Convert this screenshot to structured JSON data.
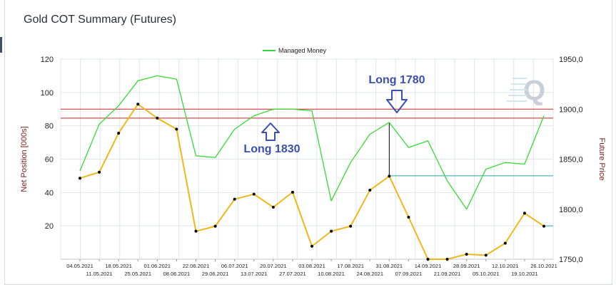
{
  "window": {
    "title": "Gold COT Summary (Futures)"
  },
  "chart_data": {
    "type": "line",
    "title": "Gold COT Summary (Futures)",
    "ylabel": "Net Position [000s]",
    "y2label": "Future Price",
    "ylim": [
      0,
      120
    ],
    "y2lim": [
      1750,
      1950
    ],
    "yticks": [
      "120",
      "100",
      "80",
      "60",
      "40",
      "20"
    ],
    "y2ticks": [
      "1950,0",
      "1900,0",
      "1850,0",
      "1800,0",
      "1750,0"
    ],
    "grid": true,
    "legend": "top-center",
    "categories": [
      "04.05.2021",
      "11.05.2021",
      "18.05.2021",
      "25.05.2021",
      "01.06.2021",
      "08.06.2021",
      "22.06.2021",
      "29.06.2021",
      "06.07.2021",
      "13.07.2021",
      "20.07.2021",
      "27.07.2021",
      "03.08.2021",
      "10.08.2021",
      "17.08.2021",
      "24.08.2021",
      "31.08.2021",
      "07.09.2021",
      "14.09.2021",
      "21.09.2021",
      "28.09.2021",
      "05.10.2021",
      "12.10.2021",
      "19.10.2021",
      "26.10.2021"
    ],
    "series": [
      {
        "name": "Managed Money",
        "color": "#33dd33",
        "axis": "left",
        "values": [
          53,
          81,
          92,
          107,
          110,
          108,
          62,
          61,
          78,
          86,
          90,
          90,
          89,
          35,
          58,
          75,
          82,
          67,
          71,
          47,
          30,
          54,
          58,
          57,
          86
        ]
      },
      {
        "color": "#f0b818",
        "axis": "right",
        "values": [
          1831,
          1837,
          1876,
          1905,
          1891,
          1880,
          1778,
          1783,
          1810,
          1815,
          1802,
          1817,
          1763,
          1778,
          1783,
          1819,
          1833,
          1792,
          1750,
          1750,
          1755,
          1754,
          1766,
          1796,
          1783
        ]
      }
    ],
    "reference_lines": [
      {
        "axis": "right",
        "value": 1900,
        "color": "#cc2222"
      },
      {
        "axis": "right",
        "value": 1891,
        "color": "#cc2222"
      },
      {
        "axis": "left",
        "value": 50,
        "color": "#22aaaa",
        "from_category": "31.08.2021"
      },
      {
        "axis": "left",
        "value": 20,
        "color": "#22aaaa",
        "from_category": "26.10.2021"
      }
    ],
    "annotations": [
      {
        "text": "Long 1780",
        "arrow": "down"
      },
      {
        "text": "Long 1830",
        "arrow": "up"
      }
    ]
  }
}
